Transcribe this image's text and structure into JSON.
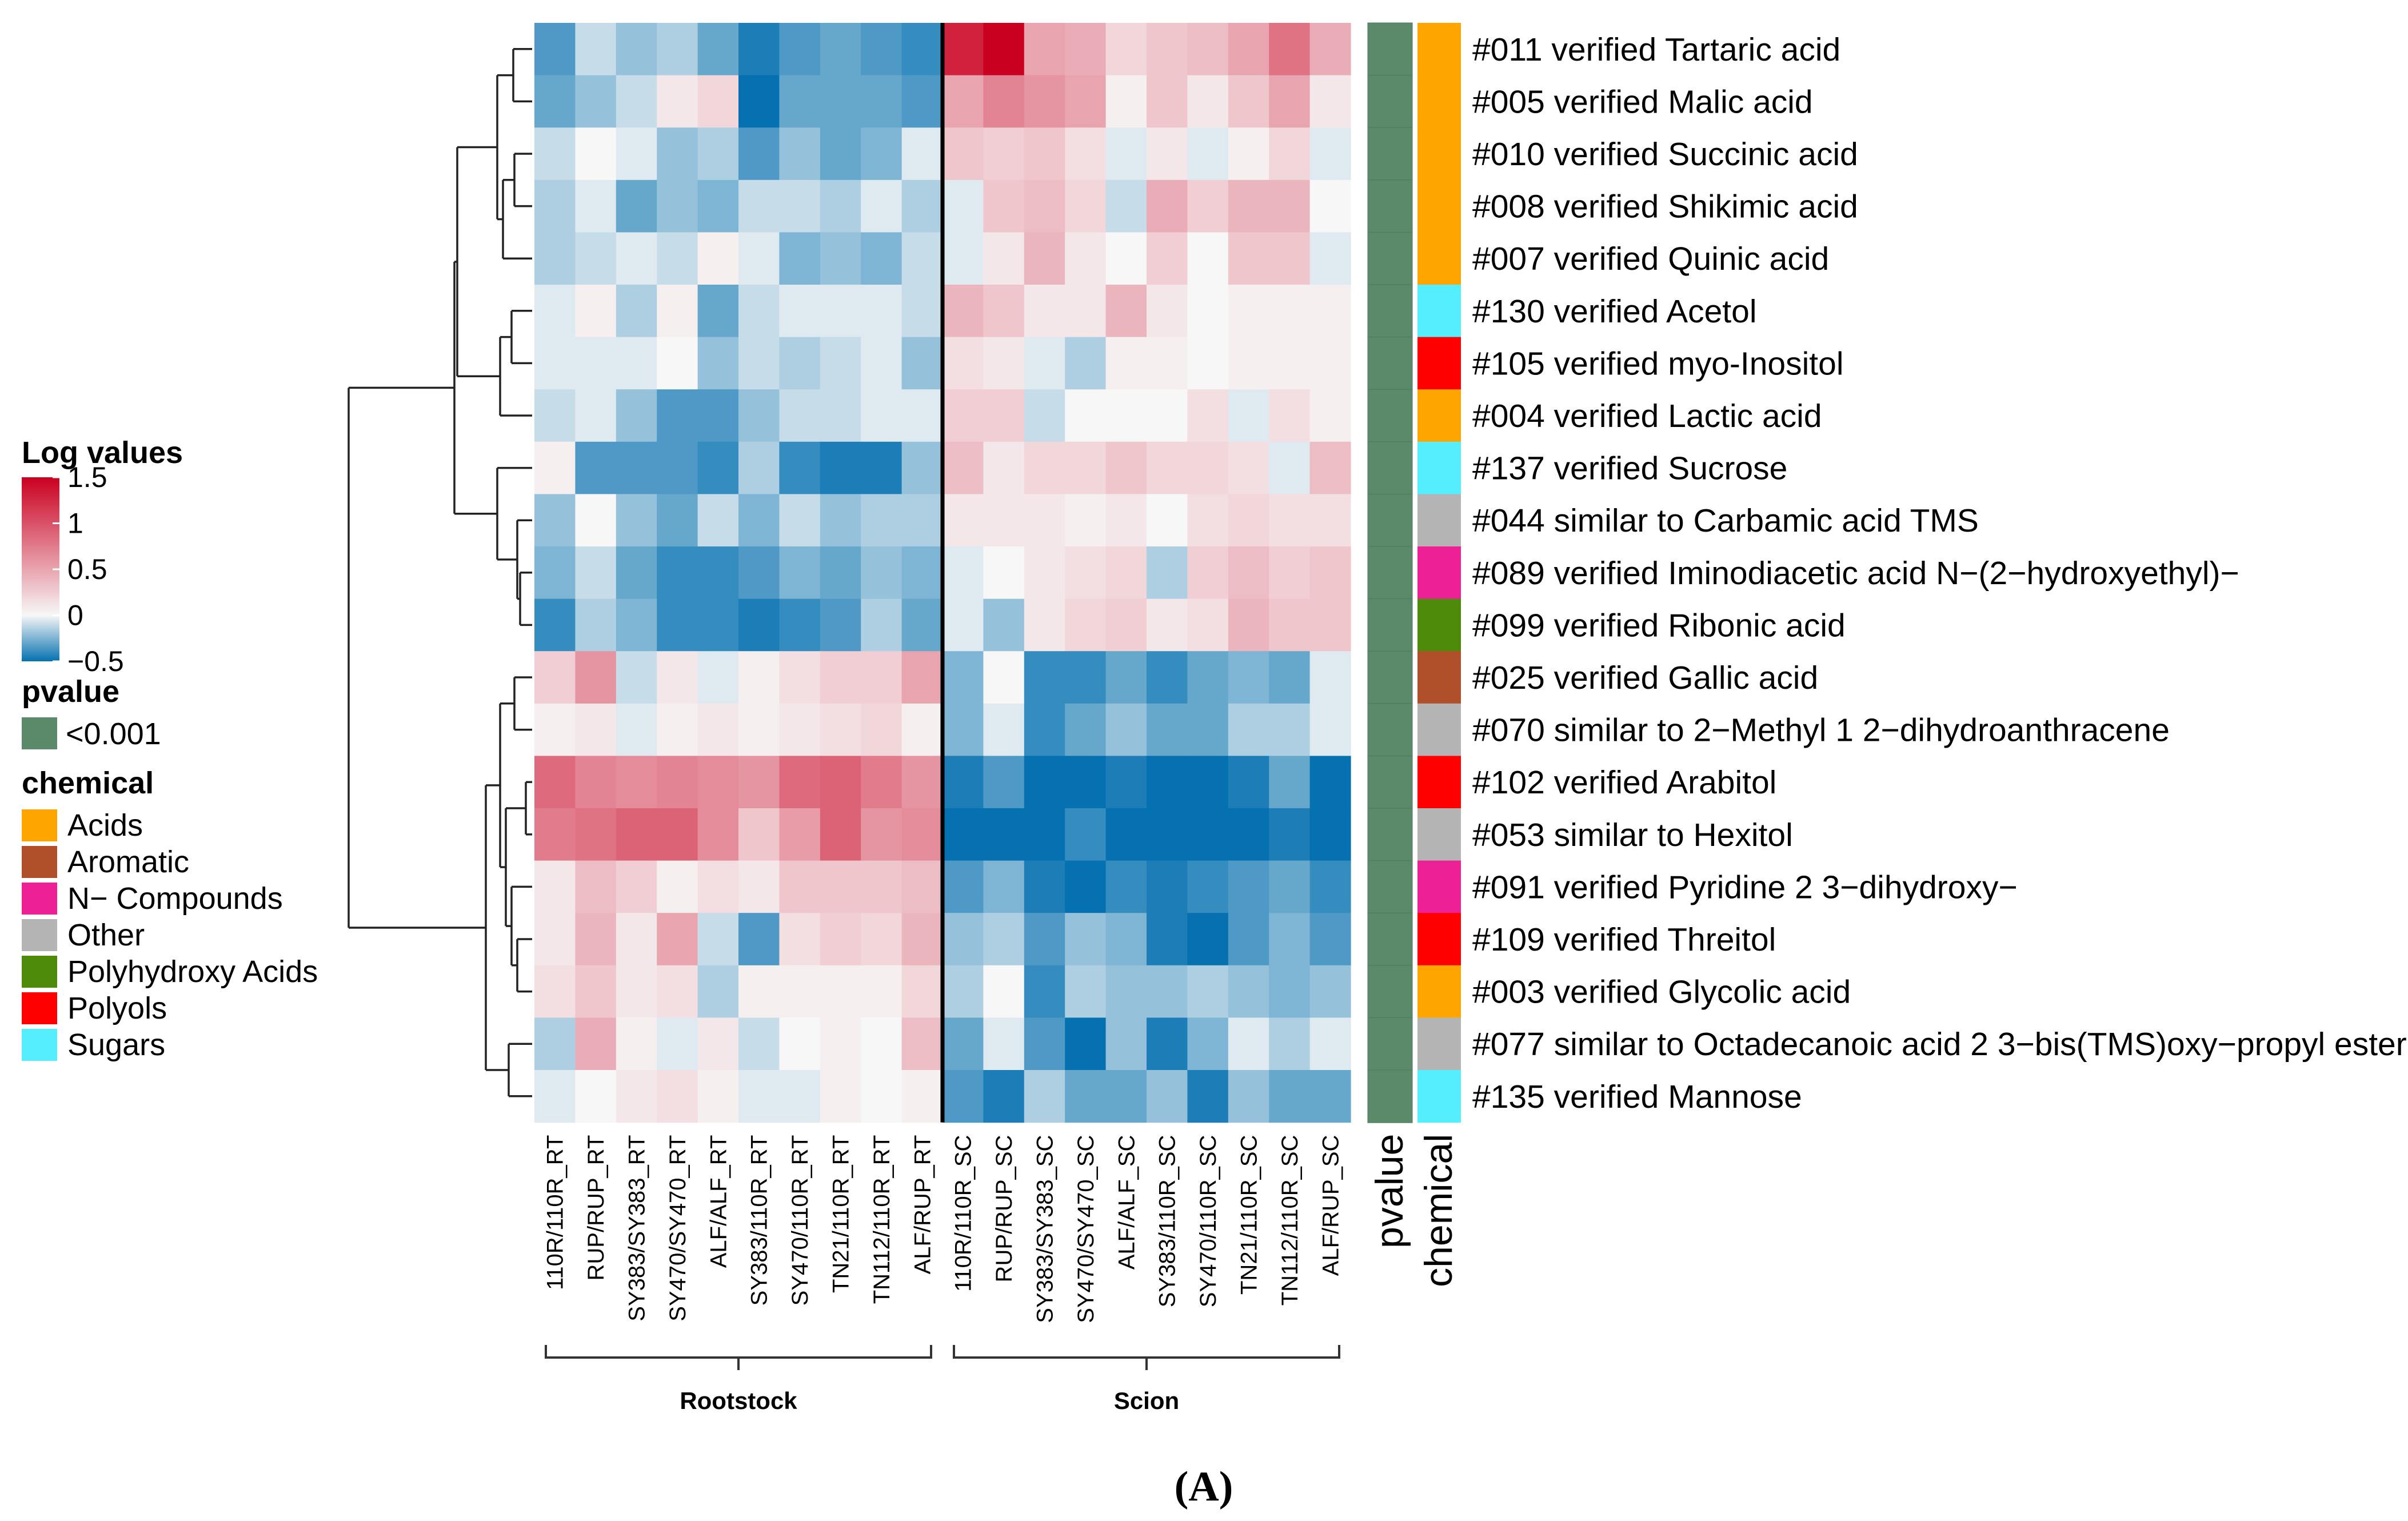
{
  "panel_label": "(A)",
  "colors": {
    "neg": "#0571b0",
    "mid": "#f7f7f7",
    "pos": "#ca0020",
    "pvalue": "#5a8a6a"
  },
  "chart_data": {
    "type": "heatmap",
    "title": "",
    "columns": [
      "110R/110R_RT",
      "RUP/RUP_RT",
      "SY383/SY383_RT",
      "SY470/SY470_RT",
      "ALF/ALF_RT",
      "SY383/110R_RT",
      "SY470/110R_RT",
      "TN21/110R_RT",
      "TN112/110R_RT",
      "ALF/RUP_RT",
      "110R/110R_SC",
      "RUP/RUP_SC",
      "SY383/SY383_SC",
      "SY470/SY470_SC",
      "ALF/ALF_SC",
      "SY383/110R_SC",
      "SY470/110R_SC",
      "TN21/110R_SC",
      "TN112/110R_SC",
      "ALF/RUP_SC"
    ],
    "groups": [
      {
        "label": "Rootstock",
        "start": 0,
        "end": 9
      },
      {
        "label": "Scion",
        "start": 10,
        "end": 19
      }
    ],
    "rows": [
      {
        "label": "#011 verified Tartaric acid",
        "chemical": "Acids",
        "values": [
          -0.35,
          -0.1,
          -0.2,
          -0.15,
          -0.3,
          -0.45,
          -0.35,
          -0.3,
          -0.35,
          -0.4,
          1.3,
          1.6,
          0.5,
          0.45,
          0.2,
          0.3,
          0.35,
          0.5,
          0.8,
          0.45
        ]
      },
      {
        "label": "#005 verified Malic acid",
        "chemical": "Acids",
        "values": [
          -0.3,
          -0.2,
          -0.1,
          0.1,
          0.2,
          -0.5,
          -0.3,
          -0.3,
          -0.3,
          -0.35,
          0.5,
          0.7,
          0.6,
          0.5,
          0.05,
          0.3,
          0.1,
          0.3,
          0.5,
          0.1
        ]
      },
      {
        "label": "#010 verified Succinic acid",
        "chemical": "Acids",
        "values": [
          -0.1,
          0.0,
          -0.05,
          -0.2,
          -0.15,
          -0.35,
          -0.2,
          -0.3,
          -0.25,
          -0.05,
          0.3,
          0.25,
          0.3,
          0.15,
          -0.05,
          0.1,
          -0.05,
          0.05,
          0.2,
          -0.05
        ]
      },
      {
        "label": "#008 verified Shikimic acid",
        "chemical": "Acids",
        "values": [
          -0.15,
          -0.05,
          -0.3,
          -0.2,
          -0.25,
          -0.1,
          -0.1,
          -0.15,
          -0.05,
          -0.15,
          -0.05,
          0.3,
          0.35,
          0.2,
          -0.1,
          0.45,
          0.25,
          0.4,
          0.4,
          0.0
        ]
      },
      {
        "label": "#007 verified Quinic acid",
        "chemical": "Acids",
        "values": [
          -0.15,
          -0.1,
          -0.05,
          -0.1,
          0.05,
          -0.05,
          -0.25,
          -0.2,
          -0.25,
          -0.1,
          -0.05,
          0.1,
          0.4,
          0.1,
          0.0,
          0.25,
          0.0,
          0.3,
          0.3,
          -0.05
        ]
      },
      {
        "label": "#130 verified Acetol",
        "chemical": "Sugars",
        "values": [
          -0.05,
          0.05,
          -0.15,
          0.05,
          -0.3,
          -0.1,
          -0.05,
          -0.05,
          -0.05,
          -0.1,
          0.4,
          0.3,
          0.1,
          0.1,
          0.4,
          0.1,
          0.0,
          0.05,
          0.05,
          0.05
        ]
      },
      {
        "label": "#105 verified myo-Inositol",
        "chemical": "Polyols",
        "values": [
          -0.05,
          -0.05,
          -0.05,
          0.0,
          -0.2,
          -0.1,
          -0.15,
          -0.1,
          -0.05,
          -0.2,
          0.15,
          0.1,
          -0.05,
          -0.15,
          0.05,
          0.05,
          0.0,
          0.05,
          0.05,
          0.05
        ]
      },
      {
        "label": "#004 verified Lactic acid",
        "chemical": "Acids",
        "values": [
          -0.1,
          -0.05,
          -0.2,
          -0.35,
          -0.35,
          -0.2,
          -0.1,
          -0.1,
          -0.05,
          -0.05,
          0.25,
          0.25,
          -0.1,
          0.0,
          0.0,
          0.0,
          0.15,
          -0.05,
          0.15,
          0.05
        ]
      },
      {
        "label": "#137 verified Sucrose",
        "chemical": "Sugars",
        "values": [
          0.05,
          -0.35,
          -0.35,
          -0.35,
          -0.4,
          -0.15,
          -0.4,
          -0.45,
          -0.45,
          -0.2,
          0.35,
          0.1,
          0.2,
          0.2,
          0.3,
          0.2,
          0.2,
          0.15,
          -0.05,
          0.35
        ]
      },
      {
        "label": "#044 similar to Carbamic acid  TMS",
        "chemical": "Other",
        "values": [
          -0.2,
          0.0,
          -0.2,
          -0.3,
          -0.1,
          -0.25,
          -0.1,
          -0.2,
          -0.15,
          -0.15,
          0.1,
          0.1,
          0.1,
          0.05,
          0.1,
          0.0,
          0.15,
          0.2,
          0.15,
          0.15
        ]
      },
      {
        "label": "#089 verified Iminodiacetic acid  N−(2−hydroxyethyl)−",
        "chemical": "N- Compounds",
        "values": [
          -0.25,
          -0.1,
          -0.3,
          -0.4,
          -0.4,
          -0.35,
          -0.25,
          -0.3,
          -0.2,
          -0.25,
          -0.05,
          0.0,
          0.1,
          0.15,
          0.2,
          -0.15,
          0.25,
          0.35,
          0.25,
          0.3
        ]
      },
      {
        "label": "#099 verified Ribonic acid",
        "chemical": "Polyhydroxy Acids",
        "values": [
          -0.4,
          -0.15,
          -0.25,
          -0.4,
          -0.4,
          -0.45,
          -0.4,
          -0.35,
          -0.15,
          -0.3,
          -0.05,
          -0.2,
          0.1,
          0.2,
          0.25,
          0.1,
          0.15,
          0.4,
          0.3,
          0.3
        ]
      },
      {
        "label": "#025 verified Gallic acid",
        "chemical": "Aromatic",
        "values": [
          0.25,
          0.6,
          -0.1,
          0.1,
          -0.05,
          0.05,
          0.15,
          0.25,
          0.25,
          0.5,
          -0.25,
          0.0,
          -0.4,
          -0.4,
          -0.3,
          -0.4,
          -0.3,
          -0.25,
          -0.3,
          -0.05
        ]
      },
      {
        "label": "#070 similar to 2−Methyl 1 2−dihydroanthracene",
        "chemical": "Other",
        "values": [
          0.05,
          0.1,
          -0.05,
          0.05,
          0.1,
          0.05,
          0.1,
          0.15,
          0.2,
          0.05,
          -0.25,
          -0.05,
          -0.4,
          -0.3,
          -0.2,
          -0.3,
          -0.3,
          -0.15,
          -0.15,
          -0.05
        ]
      },
      {
        "label": "#102 verified Arabitol",
        "chemical": "Polyols",
        "values": [
          0.85,
          0.7,
          0.65,
          0.7,
          0.65,
          0.6,
          0.85,
          0.9,
          0.75,
          0.6,
          -0.45,
          -0.35,
          -0.6,
          -0.9,
          -0.45,
          -0.5,
          -0.65,
          -0.45,
          -0.3,
          -0.55
        ]
      },
      {
        "label": "#053 similar to Hexitol",
        "chemical": "Other",
        "values": [
          0.75,
          0.8,
          0.9,
          0.9,
          0.65,
          0.3,
          0.55,
          0.9,
          0.6,
          0.65,
          -0.7,
          -0.5,
          -0.65,
          -0.4,
          -0.55,
          -0.55,
          -0.55,
          -0.5,
          -0.45,
          -0.65
        ]
      },
      {
        "label": "#091 verified Pyridine 2 3−dihydroxy−",
        "chemical": "N- Compounds",
        "values": [
          0.1,
          0.35,
          0.25,
          0.05,
          0.15,
          0.1,
          0.3,
          0.3,
          0.3,
          0.35,
          -0.35,
          -0.25,
          -0.45,
          -0.6,
          -0.4,
          -0.45,
          -0.4,
          -0.35,
          -0.3,
          -0.4
        ]
      },
      {
        "label": "#109 verified Threitol",
        "chemical": "Polyols",
        "values": [
          0.1,
          0.4,
          0.1,
          0.5,
          -0.1,
          -0.35,
          0.15,
          0.25,
          0.2,
          0.4,
          -0.2,
          -0.15,
          -0.35,
          -0.2,
          -0.25,
          -0.45,
          -0.65,
          -0.35,
          -0.25,
          -0.35
        ]
      },
      {
        "label": "#003 verified Glycolic acid",
        "chemical": "Acids",
        "values": [
          0.15,
          0.3,
          0.1,
          0.15,
          -0.15,
          0.05,
          0.05,
          0.05,
          0.05,
          0.2,
          -0.15,
          0.0,
          -0.4,
          -0.15,
          -0.2,
          -0.2,
          -0.15,
          -0.2,
          -0.25,
          -0.2
        ]
      },
      {
        "label": "#077 similar to Octadecanoic acid 2 3−bis(TMS)oxy−propyl ester",
        "chemical": "Other",
        "values": [
          -0.15,
          0.45,
          0.05,
          -0.05,
          0.1,
          -0.1,
          0.0,
          0.05,
          0.0,
          0.35,
          -0.3,
          -0.05,
          -0.35,
          -0.6,
          -0.2,
          -0.45,
          -0.25,
          -0.05,
          -0.15,
          -0.05
        ]
      },
      {
        "label": "#135 verified Mannose",
        "chemical": "Sugars",
        "values": [
          -0.05,
          0.0,
          0.1,
          0.15,
          0.05,
          -0.05,
          -0.05,
          0.05,
          0.0,
          0.05,
          -0.35,
          -0.45,
          -0.15,
          -0.3,
          -0.3,
          -0.2,
          -0.45,
          -0.2,
          -0.3,
          -0.3
        ]
      }
    ],
    "colorbar": {
      "title": "Log values",
      "range": [
        -0.5,
        1.5
      ],
      "ticks": [
        "1.5",
        "1",
        "0.5",
        "0",
        "−0.5"
      ]
    },
    "pvalue": {
      "title": "pvalue",
      "entries": [
        {
          "label": "<0.001",
          "color": "#5a8a6a"
        }
      ]
    },
    "chemical": {
      "title": "chemical",
      "categories": [
        {
          "label": "Acids",
          "color": "#ffa500"
        },
        {
          "label": "Aromatic",
          "color": "#b0502a"
        },
        {
          "label": "N− Compounds",
          "key": "N- Compounds",
          "color": "#ee2096"
        },
        {
          "label": "Other",
          "color": "#b4b4b4"
        },
        {
          "label": "Polyhydroxy Acids",
          "color": "#4e8a0a"
        },
        {
          "label": "Polyols",
          "color": "#ff0000"
        },
        {
          "label": "Sugars",
          "color": "#55eeff"
        }
      ]
    },
    "annotation_columns": [
      "pvalue",
      "chemical"
    ]
  }
}
